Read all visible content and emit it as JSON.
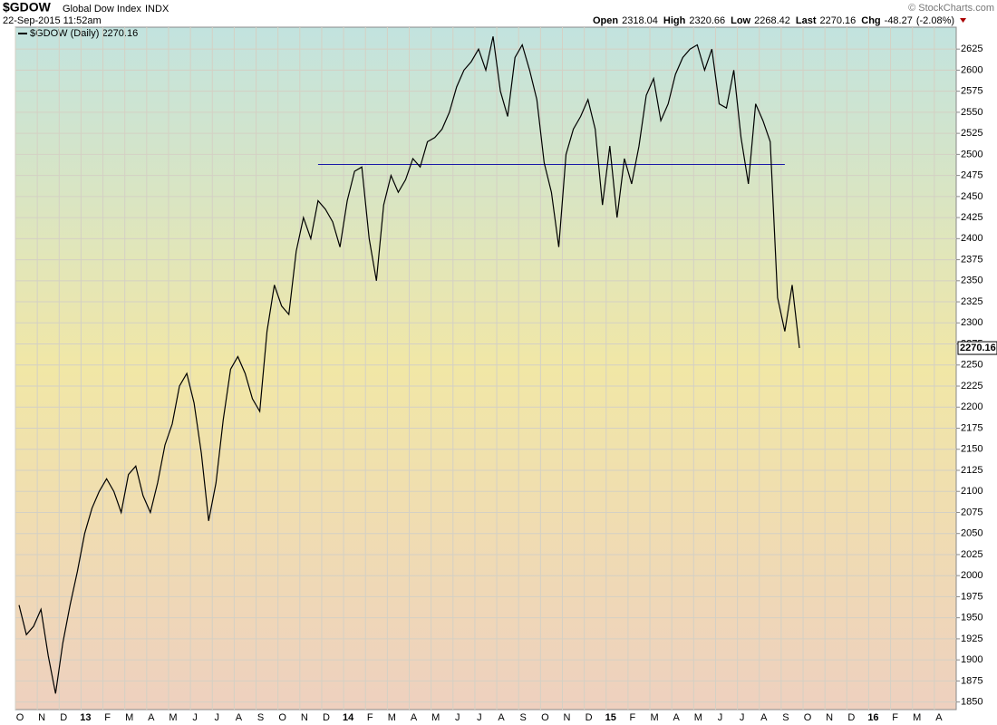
{
  "header": {
    "symbol": "$GDOW",
    "name": "Global Dow Index",
    "exchange": "INDX",
    "datetime": "22-Sep-2015 11:52am",
    "copyright": "© StockCharts.com",
    "quote": [
      {
        "label": "Open",
        "value": 2318.04
      },
      {
        "label": "High",
        "value": 2320.66
      },
      {
        "label": "Low",
        "value": 2268.42
      },
      {
        "label": "Last",
        "value": 2270.16
      },
      {
        "label": "Chg",
        "value": -48.27,
        "note": "(-2.08%)"
      }
    ]
  },
  "chart_data": {
    "type": "line",
    "categories": [
      "O",
      null,
      null,
      "N",
      null,
      null,
      "D",
      null,
      null,
      "13",
      null,
      null,
      "F",
      null,
      null,
      "M",
      null,
      null,
      "A",
      null,
      null,
      "M",
      null,
      null,
      "J",
      null,
      null,
      "J",
      null,
      null,
      "A",
      null,
      null,
      "S",
      null,
      null,
      "O",
      null,
      null,
      "N",
      null,
      null,
      "D",
      null,
      null,
      "14",
      null,
      null,
      "F",
      null,
      null,
      "M",
      null,
      null,
      "A",
      null,
      null,
      "M",
      null,
      null,
      "J",
      null,
      null,
      "J",
      null,
      null,
      "A",
      null,
      null,
      "S",
      null,
      null,
      "O",
      null,
      null,
      "N",
      null,
      null,
      "D",
      null,
      null,
      "15",
      null,
      null,
      "F",
      null,
      null,
      "M",
      null,
      null,
      "A",
      null,
      null,
      "M",
      null,
      null,
      "J",
      null,
      null,
      "J",
      null,
      null,
      "A",
      null,
      null,
      "S",
      null,
      null,
      "O",
      null,
      null,
      "N",
      null,
      null,
      "D",
      null,
      null,
      "16",
      null,
      null,
      "F",
      null,
      null,
      "M",
      null,
      null,
      "A",
      null,
      null
    ],
    "series": [
      {
        "name": "$GDOW (Daily) 2270.16",
        "color": "#000000",
        "values": [
          1965,
          1930,
          1940,
          1960,
          1905,
          1860,
          1920,
          1965,
          2005,
          2050,
          2080,
          2100,
          2115,
          2100,
          2075,
          2120,
          2130,
          2095,
          2075,
          2110,
          2155,
          2180,
          2225,
          2240,
          2205,
          2145,
          2065,
          2110,
          2185,
          2245,
          2260,
          2240,
          2210,
          2195,
          2290,
          2345,
          2320,
          2310,
          2385,
          2425,
          2400,
          2445,
          2435,
          2420,
          2390,
          2445,
          2480,
          2485,
          2400,
          2350,
          2440,
          2475,
          2455,
          2470,
          2495,
          2485,
          2515,
          2520,
          2530,
          2550,
          2580,
          2600,
          2610,
          2625,
          2600,
          2640,
          2575,
          2545,
          2615,
          2630,
          2600,
          2565,
          2490,
          2455,
          2390,
          2500,
          2530,
          2545,
          2565,
          2530,
          2440,
          2510,
          2425,
          2495,
          2465,
          2510,
          2570,
          2590,
          2540,
          2560,
          2595,
          2615,
          2625,
          2630,
          2600,
          2625,
          2560,
          2555,
          2600,
          2520,
          2465,
          2560,
          2540,
          2515,
          2330,
          2290,
          2345,
          2270.16,
          null,
          null,
          null,
          null,
          null,
          null,
          null,
          null,
          null,
          null,
          null,
          null,
          null,
          null,
          null,
          null,
          null,
          null,
          null,
          null,
          null
        ]
      }
    ],
    "hline": {
      "value": 2488,
      "from_category": 41,
      "to_category": 105,
      "color": "#1a1aa8"
    },
    "ylim": [
      1841,
      2651
    ],
    "yticks": [
      1850,
      1875,
      1900,
      1925,
      1950,
      1975,
      2000,
      2025,
      2050,
      2075,
      2100,
      2125,
      2150,
      2175,
      2200,
      2225,
      2250,
      2275,
      2300,
      2325,
      2350,
      2375,
      2400,
      2425,
      2450,
      2475,
      2500,
      2525,
      2550,
      2575,
      2600,
      2625
    ],
    "grid": true
  }
}
